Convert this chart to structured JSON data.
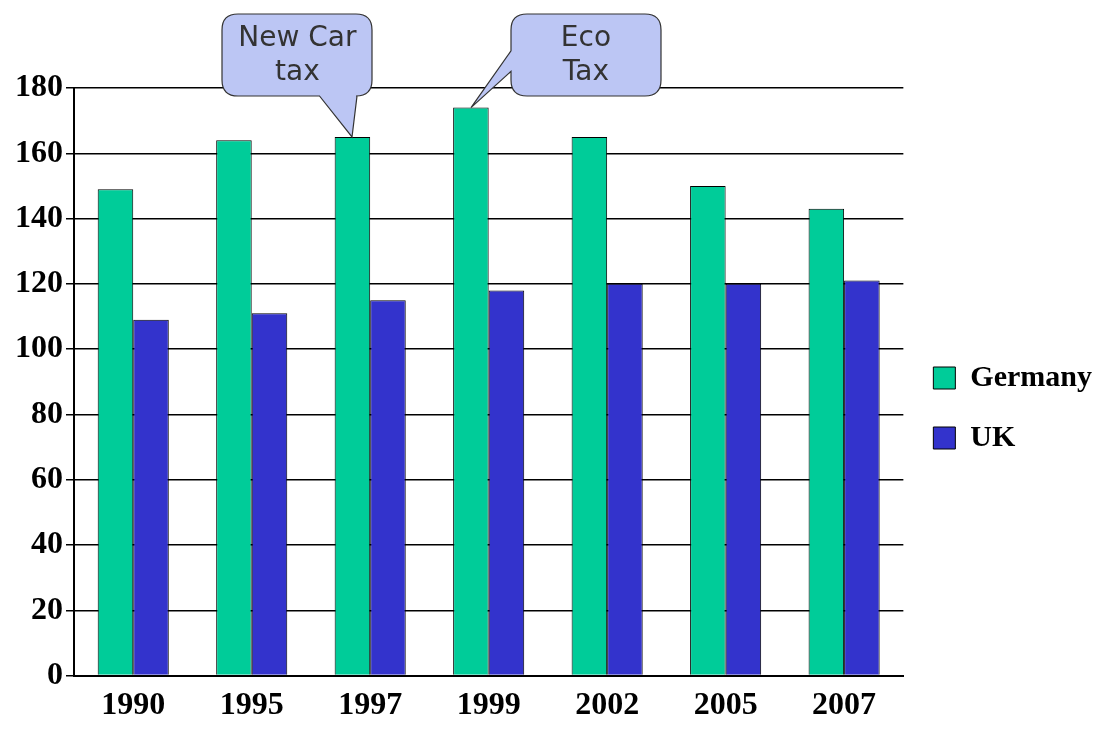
{
  "chart_data": {
    "type": "bar",
    "categories": [
      "1990",
      "1995",
      "1997",
      "1999",
      "2002",
      "2005",
      "2007"
    ],
    "series": [
      {
        "name": "Germany",
        "color": "#00cc99",
        "values": [
          149,
          164,
          165,
          174,
          165,
          150,
          143
        ]
      },
      {
        "name": "UK",
        "color": "#3333cc",
        "values": [
          109,
          111,
          115,
          118,
          120,
          120,
          121
        ]
      }
    ],
    "ylim": [
      0,
      180
    ],
    "yticks": [
      0,
      20,
      40,
      60,
      80,
      100,
      120,
      140,
      160,
      180
    ],
    "grid": "y",
    "legend": "right",
    "annotations": [
      {
        "text": "New Car\ntax",
        "x": "1997",
        "y": 165
      },
      {
        "text": "Eco\nTax",
        "x": "1999",
        "y": 174
      }
    ]
  }
}
